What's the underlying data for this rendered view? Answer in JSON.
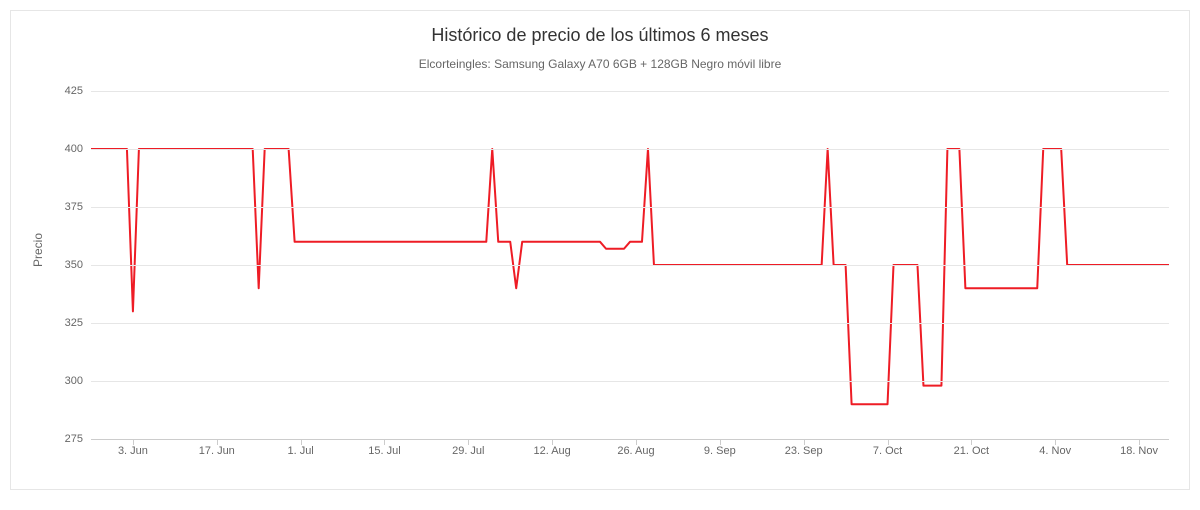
{
  "chart": {
    "type": "line",
    "title": "Histórico de precio de los últimos 6 meses",
    "title_fontsize": 18,
    "title_color": "#333333",
    "subtitle": "Elcorteingles: Samsung Galaxy A70 6GB + 128GB Negro móvil libre",
    "subtitle_fontsize": 12,
    "subtitle_color": "#666666",
    "ylabel": "Precio",
    "ylabel_fontsize": 12,
    "ylabel_color": "#666666",
    "background_color": "#ffffff",
    "card_border_color": "#e6e6e6",
    "grid_color": "#e6e6e6",
    "baseline_color": "#cccccc",
    "axis_label_color": "#666666",
    "line_color": "#ee1c25",
    "line_width": 2,
    "y": {
      "min": 275,
      "max": 425,
      "ticks": [
        275,
        300,
        325,
        350,
        375,
        400,
        425
      ]
    },
    "x": {
      "min": 0,
      "max": 180,
      "ticks": [
        {
          "t": 7,
          "label": "3. Jun"
        },
        {
          "t": 21,
          "label": "17. Jun"
        },
        {
          "t": 35,
          "label": "1. Jul"
        },
        {
          "t": 49,
          "label": "15. Jul"
        },
        {
          "t": 63,
          "label": "29. Jul"
        },
        {
          "t": 77,
          "label": "12. Aug"
        },
        {
          "t": 91,
          "label": "26. Aug"
        },
        {
          "t": 105,
          "label": "9. Sep"
        },
        {
          "t": 119,
          "label": "23. Sep"
        },
        {
          "t": 133,
          "label": "7. Oct"
        },
        {
          "t": 147,
          "label": "21. Oct"
        },
        {
          "t": 161,
          "label": "4. Nov"
        },
        {
          "t": 175,
          "label": "18. Nov"
        }
      ]
    },
    "series": [
      {
        "t": 0,
        "v": 400
      },
      {
        "t": 6,
        "v": 400
      },
      {
        "t": 7,
        "v": 330
      },
      {
        "t": 8,
        "v": 400
      },
      {
        "t": 27,
        "v": 400
      },
      {
        "t": 28,
        "v": 340
      },
      {
        "t": 29,
        "v": 400
      },
      {
        "t": 33,
        "v": 400
      },
      {
        "t": 34,
        "v": 360
      },
      {
        "t": 66,
        "v": 360
      },
      {
        "t": 67,
        "v": 400
      },
      {
        "t": 68,
        "v": 360
      },
      {
        "t": 70,
        "v": 360
      },
      {
        "t": 71,
        "v": 340
      },
      {
        "t": 72,
        "v": 360
      },
      {
        "t": 85,
        "v": 360
      },
      {
        "t": 86,
        "v": 357
      },
      {
        "t": 89,
        "v": 357
      },
      {
        "t": 90,
        "v": 360
      },
      {
        "t": 92,
        "v": 360
      },
      {
        "t": 93,
        "v": 400
      },
      {
        "t": 94,
        "v": 350
      },
      {
        "t": 122,
        "v": 350
      },
      {
        "t": 123,
        "v": 400
      },
      {
        "t": 124,
        "v": 350
      },
      {
        "t": 126,
        "v": 350
      },
      {
        "t": 127,
        "v": 290
      },
      {
        "t": 133,
        "v": 290
      },
      {
        "t": 134,
        "v": 350
      },
      {
        "t": 138,
        "v": 350
      },
      {
        "t": 139,
        "v": 298
      },
      {
        "t": 142,
        "v": 298
      },
      {
        "t": 143,
        "v": 400
      },
      {
        "t": 145,
        "v": 400
      },
      {
        "t": 146,
        "v": 340
      },
      {
        "t": 158,
        "v": 340
      },
      {
        "t": 159,
        "v": 400
      },
      {
        "t": 162,
        "v": 400
      },
      {
        "t": 163,
        "v": 350
      },
      {
        "t": 180,
        "v": 350
      }
    ]
  }
}
